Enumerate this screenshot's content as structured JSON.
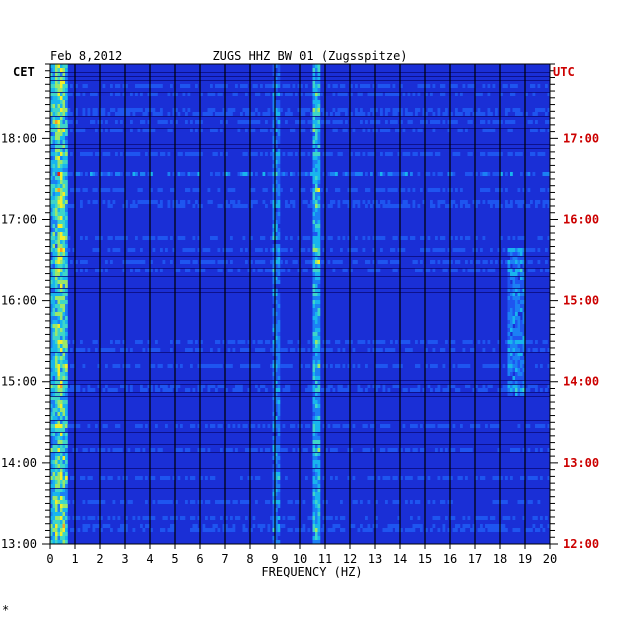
{
  "chart_data": {
    "type": "heatmap",
    "date": "Feb 8,2012",
    "title": "ZUGS HHZ BW 01 (Zugsspitze)",
    "xlabel": "FREQUENCY (HZ)",
    "xlim": [
      0,
      20
    ],
    "x_ticks": [
      "0",
      "1",
      "2",
      "3",
      "4",
      "5",
      "6",
      "7",
      "8",
      "9",
      "10",
      "11",
      "12",
      "13",
      "14",
      "15",
      "16",
      "17",
      "18",
      "19",
      "20"
    ],
    "left_axis_label": "CET",
    "right_axis_label": "UTC",
    "left_ticks": [
      "13:00",
      "14:00",
      "15:00",
      "16:00",
      "17:00",
      "18:00"
    ],
    "right_ticks": [
      "12:00",
      "13:00",
      "14:00",
      "15:00",
      "16:00",
      "17:00"
    ],
    "time_range_cet": [
      "13:00",
      "18:55"
    ],
    "colors": {
      "background_band": "#1a2fd6",
      "grid": "#000000",
      "axis_text": "#000000",
      "utc_text": "#cc0000"
    },
    "features": [
      {
        "label": "microseism band",
        "freq_hz": [
          0.1,
          0.7
        ],
        "intensity": "high"
      },
      {
        "label": "persistent line",
        "freq_hz": 10.6,
        "intensity": "medium"
      },
      {
        "label": "line",
        "freq_hz": 9.0,
        "intensity": "medium"
      },
      {
        "label": "band",
        "freq_hz": [
          18.2,
          19.0
        ],
        "time_cet": [
          "14:50",
          "16:40"
        ],
        "intensity": "high"
      },
      {
        "label": "broadband event",
        "time_cet": "17:35",
        "intensity": "medium"
      }
    ]
  }
}
